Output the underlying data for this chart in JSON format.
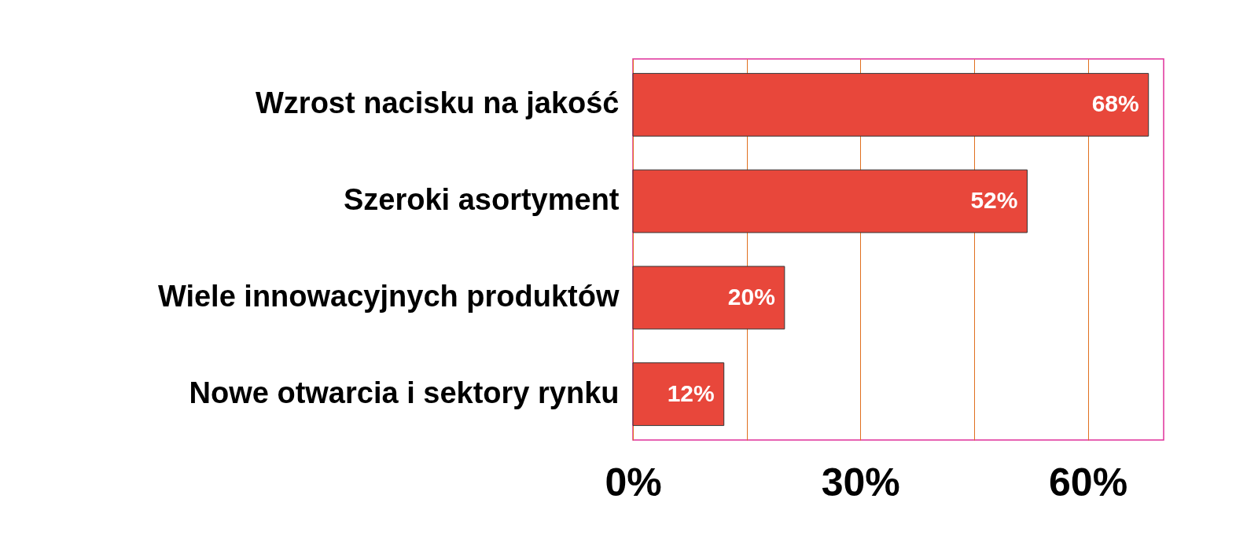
{
  "chart_data": {
    "type": "bar",
    "orientation": "horizontal",
    "categories": [
      "Wzrost nacisku na jakość",
      "Szeroki asortyment",
      "Wiele innowacyjnych produktów",
      "Nowe otwarcia i sektory rynku"
    ],
    "values": [
      68,
      52,
      20,
      12
    ],
    "value_labels": [
      "68%",
      "52%",
      "20%",
      "12%"
    ],
    "color": "#e8473b",
    "xlim": [
      0,
      70
    ],
    "xticks": [
      {
        "value": 0,
        "label": "0%"
      },
      {
        "value": 15,
        "label": null
      },
      {
        "value": 30,
        "label": "30%"
      },
      {
        "value": 45,
        "label": null
      },
      {
        "value": 60,
        "label": "60%"
      }
    ],
    "grid": "x"
  }
}
